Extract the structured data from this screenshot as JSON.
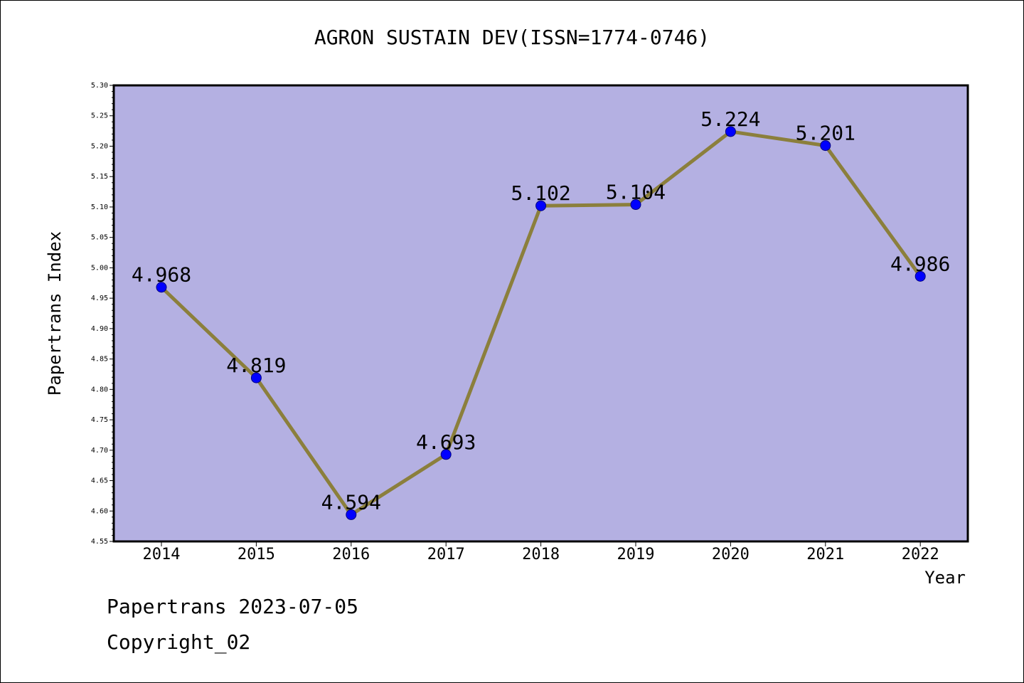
{
  "footer": {
    "date_line": "Papertrans 2023-07-05",
    "copyright_line": "Copyright_02"
  },
  "colors": {
    "plot_background": "#b4b0e2",
    "line": "#8b7f3c",
    "marker": "#0000ff",
    "axis": "#000000"
  },
  "chart_data": {
    "type": "line",
    "title": "AGRON SUSTAIN DEV(ISSN=1774-0746)",
    "xlabel": "Year",
    "ylabel": "Papertrans Index",
    "x": [
      "2014",
      "2015",
      "2016",
      "2017",
      "2018",
      "2019",
      "2020",
      "2021",
      "2022"
    ],
    "series": [
      {
        "values": [
          4.968,
          4.819,
          4.594,
          4.693,
          5.102,
          5.104,
          5.224,
          5.201,
          4.986
        ],
        "data_labels": [
          "4.968",
          "4.819",
          "4.594",
          "4.693",
          "5.102",
          "5.104",
          "5.224",
          "5.201",
          "4.986"
        ]
      }
    ],
    "ylim": [
      4.55,
      5.3
    ],
    "yticks": [
      "4.55",
      "4.60",
      "4.65",
      "4.70",
      "4.75",
      "4.80",
      "4.85",
      "4.90",
      "4.95",
      "5.00",
      "5.05",
      "5.10",
      "5.15",
      "5.20",
      "5.25",
      "5.30"
    ],
    "grid": false,
    "legend": "none"
  }
}
